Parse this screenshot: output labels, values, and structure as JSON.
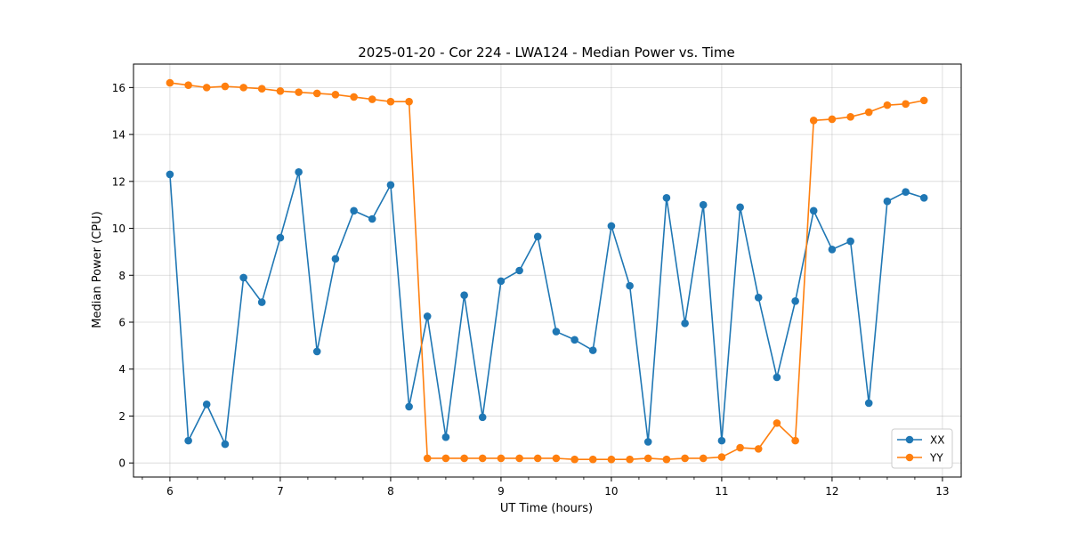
{
  "chart_data": {
    "type": "line",
    "title": "2025-01-20 - Cor 224 - LWA124 - Median Power vs. Time",
    "xlabel": "UT Time (hours)",
    "ylabel": "Median Power (CPU)",
    "xlim": [
      5.67,
      13.17
    ],
    "ylim": [
      -0.6,
      17.0
    ],
    "xticks": [
      6,
      7,
      8,
      9,
      10,
      11,
      12,
      13
    ],
    "yticks": [
      0,
      2,
      4,
      6,
      8,
      10,
      12,
      14,
      16
    ],
    "grid": true,
    "legend_position": "lower-right",
    "x": [
      6.0,
      6.167,
      6.333,
      6.5,
      6.667,
      6.833,
      7.0,
      7.167,
      7.333,
      7.5,
      7.667,
      7.833,
      8.0,
      8.167,
      8.333,
      8.5,
      8.667,
      8.833,
      9.0,
      9.167,
      9.333,
      9.5,
      9.667,
      9.833,
      10.0,
      10.167,
      10.333,
      10.5,
      10.667,
      10.833,
      11.0,
      11.167,
      11.333,
      11.5,
      11.667,
      11.833,
      12.0,
      12.167,
      12.333,
      12.5,
      12.667,
      12.833
    ],
    "series": [
      {
        "name": "XX",
        "color": "#1f77b4",
        "values": [
          12.3,
          0.95,
          2.5,
          0.8,
          7.9,
          6.85,
          9.6,
          12.4,
          4.75,
          8.7,
          10.75,
          10.4,
          11.85,
          2.4,
          6.25,
          1.1,
          7.15,
          1.95,
          7.75,
          8.2,
          9.65,
          5.6,
          5.25,
          4.8,
          10.1,
          7.55,
          0.9,
          11.3,
          5.95,
          11.0,
          0.95,
          10.9,
          7.05,
          3.65,
          6.9,
          10.75,
          9.1,
          9.45,
          2.55,
          11.15,
          11.55,
          11.3
        ]
      },
      {
        "name": "YY",
        "color": "#ff7f0e",
        "values": [
          16.2,
          16.1,
          16.0,
          16.05,
          16.0,
          15.95,
          15.85,
          15.8,
          15.75,
          15.7,
          15.6,
          15.5,
          15.4,
          15.4,
          0.2,
          0.2,
          0.2,
          0.2,
          0.2,
          0.2,
          0.2,
          0.2,
          0.15,
          0.15,
          0.15,
          0.15,
          0.2,
          0.15,
          0.2,
          0.2,
          0.25,
          0.65,
          0.6,
          1.7,
          0.95,
          14.6,
          14.65,
          14.75,
          14.95,
          15.25,
          15.3,
          15.45
        ]
      }
    ]
  }
}
